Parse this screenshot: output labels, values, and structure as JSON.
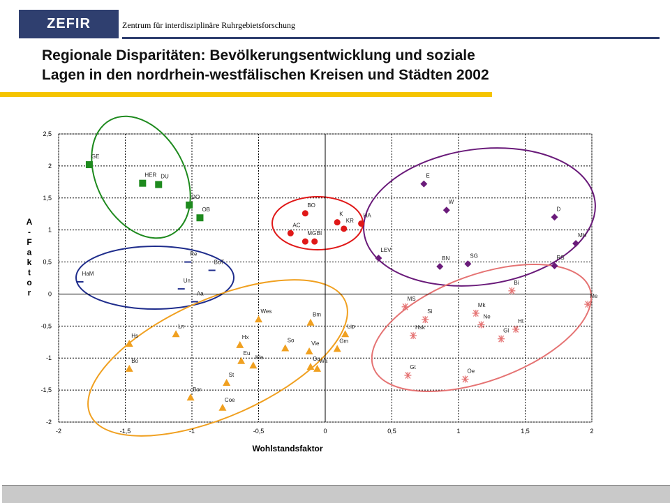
{
  "header": {
    "logo": "ZEFIR",
    "subtitle": "Zentrum für interdisziplinäre Ruhrgebietsforschung",
    "title_line1": "Regionale Disparitäten: Bevölkerungsentwicklung und soziale",
    "title_line2": "Lagen in den nordrhein-westfälischen Kreisen und Städten 2002"
  },
  "colors": {
    "navy": "#2f3f6f",
    "yellow": "#f5c400",
    "green": "#1e8a1e",
    "blue": "#1f2d8c",
    "red": "#e01818",
    "purple": "#6a1b7a",
    "orange": "#f0a020",
    "pink": "#e57373"
  },
  "chart_data": {
    "type": "scatter",
    "xlabel": "Wohlstandsfaktor",
    "ylabel": "A-Faktor",
    "xlim": [
      -2,
      2
    ],
    "ylim": [
      -2,
      2.5
    ],
    "xticks": [
      "-2",
      "-1,5",
      "-1",
      "-0,5",
      "0",
      "0,5",
      "1",
      "1,5",
      "2"
    ],
    "yticks": [
      "-2",
      "-1,5",
      "-1",
      "-0,5",
      "0",
      "0,5",
      "1",
      "1,5",
      "2",
      "2,5"
    ],
    "grid": true,
    "series": [
      {
        "marker": "square",
        "color": "#1e8a1e",
        "points": [
          {
            "label": "GE",
            "x": -1.77,
            "y": 2.02
          },
          {
            "label": "HER",
            "x": -1.37,
            "y": 1.73
          },
          {
            "label": "DU",
            "x": -1.25,
            "y": 1.71
          },
          {
            "label": "DO",
            "x": -1.02,
            "y": 1.39
          },
          {
            "label": "OB",
            "x": -0.94,
            "y": 1.19
          }
        ]
      },
      {
        "marker": "dash",
        "color": "#1f2d8c",
        "points": [
          {
            "label": "HaM",
            "x": -1.84,
            "y": 0.19
          },
          {
            "label": "Re",
            "x": -1.03,
            "y": 0.5
          },
          {
            "label": "BoT",
            "x": -0.85,
            "y": 0.37
          },
          {
            "label": "Un",
            "x": -1.08,
            "y": 0.08
          },
          {
            "label": "Aa",
            "x": -0.98,
            "y": -0.12
          }
        ]
      },
      {
        "marker": "circle",
        "color": "#e01818",
        "points": [
          {
            "label": "BO",
            "x": -0.15,
            "y": 1.26
          },
          {
            "label": "AC",
            "x": -0.26,
            "y": 0.95
          },
          {
            "label": "MG",
            "x": -0.15,
            "y": 0.82
          },
          {
            "label": "BI",
            "x": -0.08,
            "y": 0.82
          },
          {
            "label": "K",
            "x": 0.09,
            "y": 1.12
          },
          {
            "label": "KR",
            "x": 0.14,
            "y": 1.02
          },
          {
            "label": "HA",
            "x": 0.27,
            "y": 1.1
          }
        ]
      },
      {
        "marker": "diamond",
        "color": "#6a1b7a",
        "points": [
          {
            "label": "E",
            "x": 0.74,
            "y": 1.72
          },
          {
            "label": "W",
            "x": 0.91,
            "y": 1.31
          },
          {
            "label": "D",
            "x": 1.72,
            "y": 1.2
          },
          {
            "label": "MH",
            "x": 1.88,
            "y": 0.79
          },
          {
            "label": "LEV",
            "x": 0.4,
            "y": 0.56
          },
          {
            "label": "BN",
            "x": 0.86,
            "y": 0.43
          },
          {
            "label": "SG",
            "x": 1.07,
            "y": 0.47
          },
          {
            "label": "RS",
            "x": 1.72,
            "y": 0.44
          }
        ]
      },
      {
        "marker": "triangle",
        "color": "#f0a020",
        "points": [
          {
            "label": "Hs",
            "x": -1.47,
            "y": -0.78
          },
          {
            "label": "Bo",
            "x": -1.47,
            "y": -1.17
          },
          {
            "label": "Ln",
            "x": -1.12,
            "y": -0.63
          },
          {
            "label": "Bor",
            "x": -1.01,
            "y": -1.62
          },
          {
            "label": "Wes",
            "x": -0.5,
            "y": -0.4
          },
          {
            "label": "Hx",
            "x": -0.64,
            "y": -0.8
          },
          {
            "label": "Eu",
            "x": -0.63,
            "y": -1.05
          },
          {
            "label": "Kle",
            "x": -0.54,
            "y": -1.12
          },
          {
            "label": "St",
            "x": -0.74,
            "y": -1.39
          },
          {
            "label": "Coe",
            "x": -0.77,
            "y": -1.78
          },
          {
            "label": "So",
            "x": -0.3,
            "y": -0.85
          },
          {
            "label": "Bm",
            "x": -0.11,
            "y": -0.45
          },
          {
            "label": "Vie",
            "x": -0.12,
            "y": -0.9
          },
          {
            "label": "Gu",
            "x": -0.11,
            "y": -1.14
          },
          {
            "label": "Wa",
            "x": -0.06,
            "y": -1.17
          },
          {
            "label": "Lip",
            "x": 0.15,
            "y": -0.63
          },
          {
            "label": "Gm",
            "x": 0.09,
            "y": -0.86
          }
        ]
      },
      {
        "marker": "asterisk",
        "color": "#e57373",
        "points": [
          {
            "label": "MS",
            "x": 0.6,
            "y": -0.2
          },
          {
            "label": "Si",
            "x": 0.75,
            "y": -0.4
          },
          {
            "label": "Hsk",
            "x": 0.66,
            "y": -0.65
          },
          {
            "label": "Gt",
            "x": 0.62,
            "y": -1.27
          },
          {
            "label": "Mk",
            "x": 1.13,
            "y": -0.3
          },
          {
            "label": "Ne",
            "x": 1.17,
            "y": -0.48
          },
          {
            "label": "Bi",
            "x": 1.4,
            "y": 0.05
          },
          {
            "label": "Gl",
            "x": 1.32,
            "y": -0.7
          },
          {
            "label": "Ht",
            "x": 1.43,
            "y": -0.55
          },
          {
            "label": "Me",
            "x": 1.97,
            "y": -0.16
          },
          {
            "label": "Oe",
            "x": 1.05,
            "y": -1.33
          }
        ]
      }
    ]
  }
}
